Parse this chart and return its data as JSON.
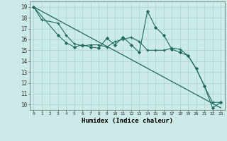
{
  "xlabel": "Humidex (Indice chaleur)",
  "bg_color": "#cceae8",
  "grid_color": "#aad4d0",
  "line_color": "#1e6b5e",
  "x_min": -0.5,
  "x_max": 23.5,
  "y_min": 9.5,
  "y_max": 19.5,
  "yticks": [
    10,
    11,
    12,
    13,
    14,
    15,
    16,
    17,
    18,
    19
  ],
  "xticks": [
    0,
    1,
    2,
    3,
    4,
    5,
    6,
    7,
    8,
    9,
    10,
    11,
    12,
    13,
    14,
    15,
    16,
    17,
    18,
    19,
    20,
    21,
    22,
    23
  ],
  "line1_x": [
    0,
    1,
    3,
    4,
    5,
    6,
    7,
    8,
    9,
    10,
    11,
    12,
    13,
    14,
    15,
    16,
    17,
    18,
    19,
    20,
    21,
    22,
    23
  ],
  "line1_y": [
    19.0,
    17.8,
    17.5,
    16.4,
    15.6,
    15.4,
    15.5,
    15.5,
    15.3,
    15.8,
    16.0,
    16.2,
    15.8,
    15.0,
    15.0,
    15.0,
    15.2,
    15.1,
    14.5,
    13.3,
    11.7,
    10.2,
    10.2
  ],
  "line2_x": [
    0,
    3,
    4,
    5,
    6,
    7,
    8,
    9,
    10,
    11,
    12,
    13,
    14,
    15,
    16,
    17,
    18,
    19,
    20,
    21,
    22,
    23
  ],
  "line2_y": [
    19.0,
    16.4,
    15.7,
    15.3,
    15.5,
    15.3,
    15.2,
    16.1,
    15.5,
    16.2,
    15.5,
    14.8,
    18.6,
    17.1,
    16.4,
    15.1,
    14.8,
    14.5,
    13.3,
    11.7,
    9.7,
    10.2
  ],
  "line3_x": [
    0,
    23
  ],
  "line3_y": [
    19.0,
    9.7
  ]
}
